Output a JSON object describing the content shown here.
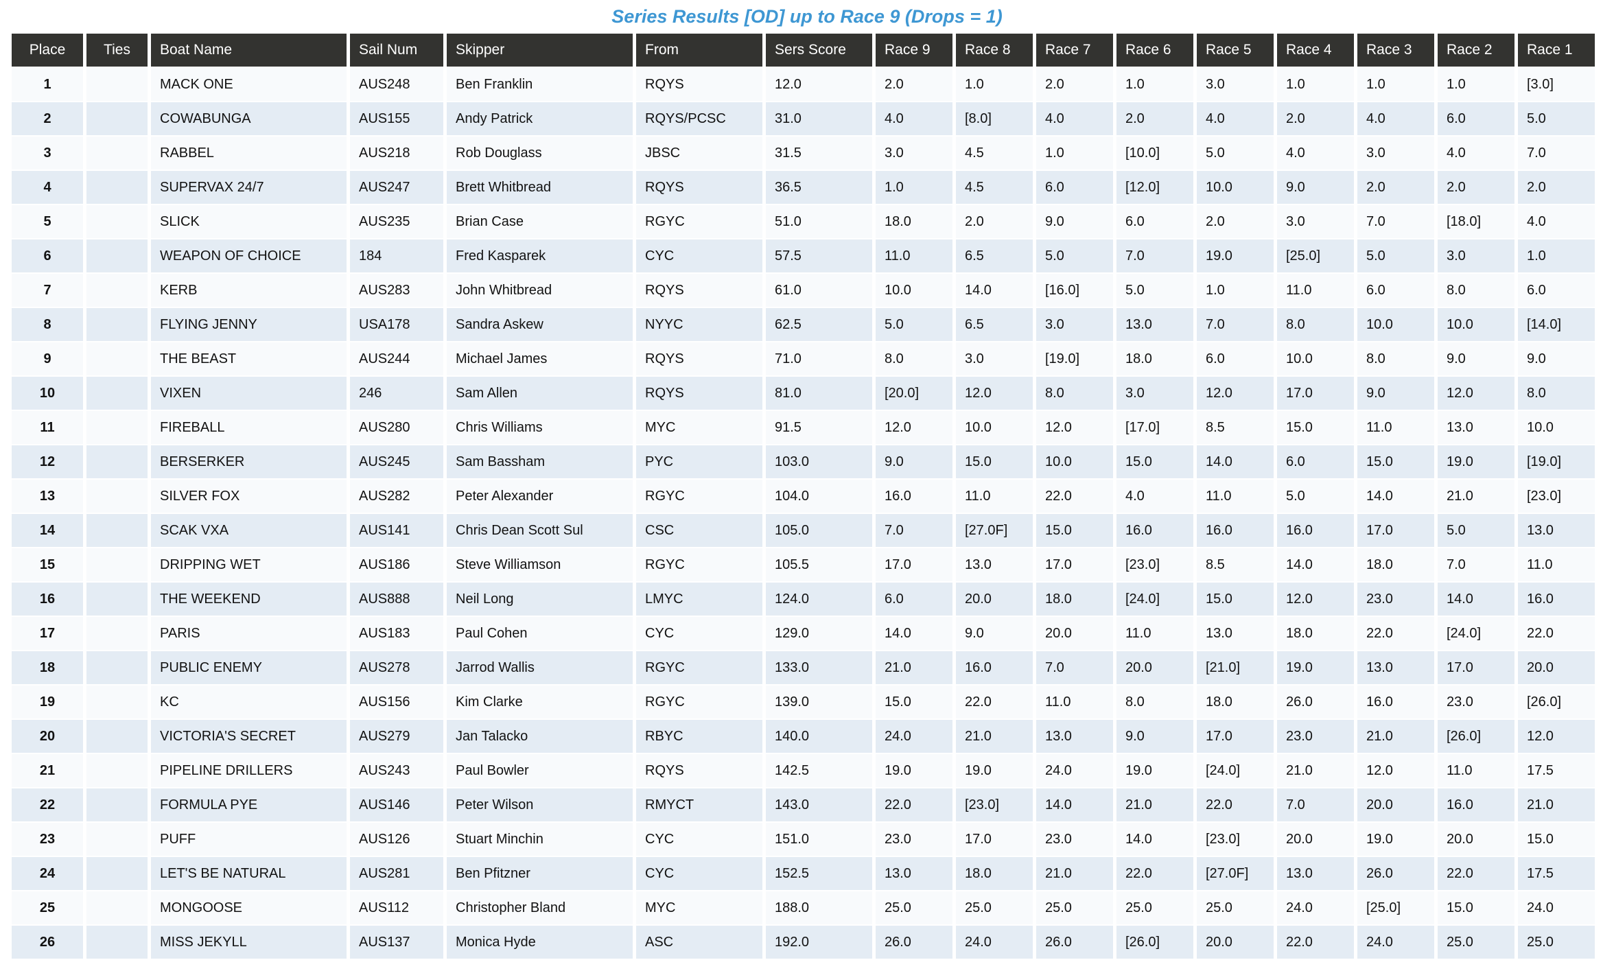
{
  "title": "Series Results [OD] up to Race 9 (Drops = 1)",
  "colors": {
    "title_accent": "#3e97d3",
    "header_bg": "#333330",
    "row_odd": "#f8fafc",
    "row_even": "#e4ecf4"
  },
  "table": {
    "columns": [
      "Place",
      "Ties",
      "Boat Name",
      "Sail Num",
      "Skipper",
      "From",
      "Sers Score",
      "Race 9",
      "Race 8",
      "Race 7",
      "Race 6",
      "Race 5",
      "Race 4",
      "Race 3",
      "Race 2",
      "Race 1"
    ],
    "rows": [
      [
        "1",
        "",
        "MACK ONE",
        "AUS248",
        "Ben Franklin",
        "RQYS",
        "12.0",
        "2.0",
        "1.0",
        "2.0",
        "1.0",
        "3.0",
        "1.0",
        "1.0",
        "1.0",
        "[3.0]"
      ],
      [
        "2",
        "",
        "COWABUNGA",
        "AUS155",
        "Andy Patrick",
        "RQYS/PCSC",
        "31.0",
        "4.0",
        "[8.0]",
        "4.0",
        "2.0",
        "4.0",
        "2.0",
        "4.0",
        "6.0",
        "5.0"
      ],
      [
        "3",
        "",
        "RABBEL",
        "AUS218",
        "Rob Douglass",
        "JBSC",
        "31.5",
        "3.0",
        "4.5",
        "1.0",
        "[10.0]",
        "5.0",
        "4.0",
        "3.0",
        "4.0",
        "7.0"
      ],
      [
        "4",
        "",
        "SUPERVAX 24/7",
        "AUS247",
        "Brett Whitbread",
        "RQYS",
        "36.5",
        "1.0",
        "4.5",
        "6.0",
        "[12.0]",
        "10.0",
        "9.0",
        "2.0",
        "2.0",
        "2.0"
      ],
      [
        "5",
        "",
        "SLICK",
        "AUS235",
        "Brian Case",
        "RGYC",
        "51.0",
        "18.0",
        "2.0",
        "9.0",
        "6.0",
        "2.0",
        "3.0",
        "7.0",
        "[18.0]",
        "4.0"
      ],
      [
        "6",
        "",
        "WEAPON OF CHOICE",
        "184",
        "Fred Kasparek",
        "CYC",
        "57.5",
        "11.0",
        "6.5",
        "5.0",
        "7.0",
        "19.0",
        "[25.0]",
        "5.0",
        "3.0",
        "1.0"
      ],
      [
        "7",
        "",
        "KERB",
        "AUS283",
        "John Whitbread",
        "RQYS",
        "61.0",
        "10.0",
        "14.0",
        "[16.0]",
        "5.0",
        "1.0",
        "11.0",
        "6.0",
        "8.0",
        "6.0"
      ],
      [
        "8",
        "",
        "FLYING JENNY",
        "USA178",
        "Sandra Askew",
        "NYYC",
        "62.5",
        "5.0",
        "6.5",
        "3.0",
        "13.0",
        "7.0",
        "8.0",
        "10.0",
        "10.0",
        "[14.0]"
      ],
      [
        "9",
        "",
        "THE BEAST",
        "AUS244",
        "Michael James",
        "RQYS",
        "71.0",
        "8.0",
        "3.0",
        "[19.0]",
        "18.0",
        "6.0",
        "10.0",
        "8.0",
        "9.0",
        "9.0"
      ],
      [
        "10",
        "",
        "VIXEN",
        "246",
        "Sam Allen",
        "RQYS",
        "81.0",
        "[20.0]",
        "12.0",
        "8.0",
        "3.0",
        "12.0",
        "17.0",
        "9.0",
        "12.0",
        "8.0"
      ],
      [
        "11",
        "",
        "FIREBALL",
        "AUS280",
        "Chris Williams",
        "MYC",
        "91.5",
        "12.0",
        "10.0",
        "12.0",
        "[17.0]",
        "8.5",
        "15.0",
        "11.0",
        "13.0",
        "10.0"
      ],
      [
        "12",
        "",
        "BERSERKER",
        "AUS245",
        "Sam Bassham",
        "PYC",
        "103.0",
        "9.0",
        "15.0",
        "10.0",
        "15.0",
        "14.0",
        "6.0",
        "15.0",
        "19.0",
        "[19.0]"
      ],
      [
        "13",
        "",
        "SILVER FOX",
        "AUS282",
        "Peter Alexander",
        "RGYC",
        "104.0",
        "16.0",
        "11.0",
        "22.0",
        "4.0",
        "11.0",
        "5.0",
        "14.0",
        "21.0",
        "[23.0]"
      ],
      [
        "14",
        "",
        "SCAK VXA",
        "AUS141",
        "Chris Dean Scott Sul",
        "CSC",
        "105.0",
        "7.0",
        "[27.0F]",
        "15.0",
        "16.0",
        "16.0",
        "16.0",
        "17.0",
        "5.0",
        "13.0"
      ],
      [
        "15",
        "",
        "DRIPPING WET",
        "AUS186",
        "Steve Williamson",
        "RGYC",
        "105.5",
        "17.0",
        "13.0",
        "17.0",
        "[23.0]",
        "8.5",
        "14.0",
        "18.0",
        "7.0",
        "11.0"
      ],
      [
        "16",
        "",
        "THE WEEKEND",
        "AUS888",
        "Neil Long",
        "LMYC",
        "124.0",
        "6.0",
        "20.0",
        "18.0",
        "[24.0]",
        "15.0",
        "12.0",
        "23.0",
        "14.0",
        "16.0"
      ],
      [
        "17",
        "",
        "PARIS",
        "AUS183",
        "Paul Cohen",
        "CYC",
        "129.0",
        "14.0",
        "9.0",
        "20.0",
        "11.0",
        "13.0",
        "18.0",
        "22.0",
        "[24.0]",
        "22.0"
      ],
      [
        "18",
        "",
        "PUBLIC ENEMY",
        "AUS278",
        "Jarrod Wallis",
        "RGYC",
        "133.0",
        "21.0",
        "16.0",
        "7.0",
        "20.0",
        "[21.0]",
        "19.0",
        "13.0",
        "17.0",
        "20.0"
      ],
      [
        "19",
        "",
        "KC",
        "AUS156",
        "Kim Clarke",
        "RGYC",
        "139.0",
        "15.0",
        "22.0",
        "11.0",
        "8.0",
        "18.0",
        "26.0",
        "16.0",
        "23.0",
        "[26.0]"
      ],
      [
        "20",
        "",
        "VICTORIA'S SECRET",
        "AUS279",
        "Jan Talacko",
        "RBYC",
        "140.0",
        "24.0",
        "21.0",
        "13.0",
        "9.0",
        "17.0",
        "23.0",
        "21.0",
        "[26.0]",
        "12.0"
      ],
      [
        "21",
        "",
        "PIPELINE DRILLERS",
        "AUS243",
        "Paul Bowler",
        "RQYS",
        "142.5",
        "19.0",
        "19.0",
        "24.0",
        "19.0",
        "[24.0]",
        "21.0",
        "12.0",
        "11.0",
        "17.5"
      ],
      [
        "22",
        "",
        "FORMULA PYE",
        "AUS146",
        "Peter Wilson",
        "RMYCT",
        "143.0",
        "22.0",
        "[23.0]",
        "14.0",
        "21.0",
        "22.0",
        "7.0",
        "20.0",
        "16.0",
        "21.0"
      ],
      [
        "23",
        "",
        "PUFF",
        "AUS126",
        "Stuart Minchin",
        "CYC",
        "151.0",
        "23.0",
        "17.0",
        "23.0",
        "14.0",
        "[23.0]",
        "20.0",
        "19.0",
        "20.0",
        "15.0"
      ],
      [
        "24",
        "",
        "LET'S BE NATURAL",
        "AUS281",
        "Ben Pfitzner",
        "CYC",
        "152.5",
        "13.0",
        "18.0",
        "21.0",
        "22.0",
        "[27.0F]",
        "13.0",
        "26.0",
        "22.0",
        "17.5"
      ],
      [
        "25",
        "",
        "MONGOOSE",
        "AUS112",
        "Christopher Bland",
        "MYC",
        "188.0",
        "25.0",
        "25.0",
        "25.0",
        "25.0",
        "25.0",
        "24.0",
        "[25.0]",
        "15.0",
        "24.0"
      ],
      [
        "26",
        "",
        "MISS JEKYLL",
        "AUS137",
        "Monica Hyde",
        "ASC",
        "192.0",
        "26.0",
        "24.0",
        "26.0",
        "[26.0]",
        "20.0",
        "22.0",
        "24.0",
        "25.0",
        "25.0"
      ]
    ]
  }
}
